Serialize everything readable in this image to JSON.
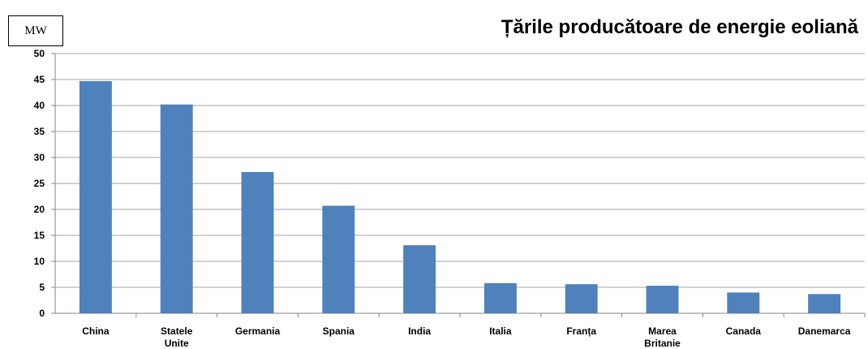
{
  "unit_label": "MW",
  "chart_data": {
    "type": "bar",
    "title": "Țările producătoare de energie eoliană",
    "xlabel": "",
    "ylabel": "",
    "ylim": [
      0,
      50
    ],
    "yticks": [
      0,
      5,
      10,
      15,
      20,
      25,
      30,
      35,
      40,
      45,
      50
    ],
    "grid": true,
    "categories": [
      [
        "China"
      ],
      [
        "Statele",
        "Unite"
      ],
      [
        "Germania"
      ],
      [
        "Spania"
      ],
      [
        "India"
      ],
      [
        "Italia"
      ],
      [
        "Franța"
      ],
      [
        "Marea",
        "Britanie"
      ],
      [
        "Canada"
      ],
      [
        "Danemarca"
      ]
    ],
    "values": [
      44.7,
      40.2,
      27.2,
      20.7,
      13.1,
      5.8,
      5.6,
      5.3,
      4.0,
      3.7
    ],
    "bar_color": "#4f81bd",
    "grid_color": "#a6a6a6"
  }
}
